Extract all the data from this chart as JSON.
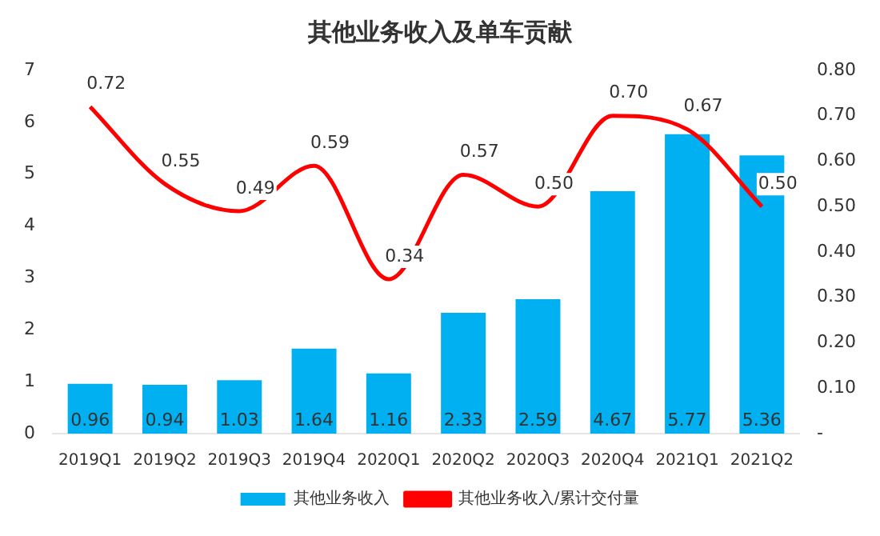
{
  "chart_data": {
    "type": "bar",
    "title": "其他业务收入及单车贡献",
    "categories": [
      "2019Q1",
      "2019Q2",
      "2019Q3",
      "2019Q4",
      "2020Q1",
      "2020Q2",
      "2020Q3",
      "2020Q4",
      "2021Q1",
      "2021Q2"
    ],
    "series": [
      {
        "name": "其他业务收入",
        "color": "#00b0f0",
        "values": [
          0.96,
          0.94,
          1.03,
          1.64,
          1.16,
          2.33,
          2.59,
          4.67,
          5.77,
          5.36
        ],
        "value_labels": [
          "0.96",
          "0.94",
          "1.03",
          "1.64",
          "1.16",
          "2.33",
          "2.59",
          "4.67",
          "5.77",
          "5.36"
        ]
      },
      {
        "name": "其他业务收入/累计交付量",
        "type": "line",
        "axis": "y2",
        "color": "#ff0000",
        "values": [
          0.72,
          0.55,
          0.49,
          0.59,
          0.34,
          0.57,
          0.5,
          0.7,
          0.67,
          0.5
        ],
        "value_labels": [
          "0.72",
          "0.55",
          "0.49",
          "0.59",
          "0.34",
          "0.57",
          "0.50",
          "0.70",
          "0.67",
          "0.50"
        ]
      }
    ],
    "ylim": [
      0,
      7
    ],
    "yticks": [
      0,
      1,
      2,
      3,
      4,
      5,
      6,
      7
    ],
    "y2lim": [
      0,
      0.8
    ],
    "y2ticks": [
      {
        "value": 0,
        "label": "-"
      },
      {
        "value": 0.1,
        "label": "0.10"
      },
      {
        "value": 0.2,
        "label": "0.20"
      },
      {
        "value": 0.3,
        "label": "0.30"
      },
      {
        "value": 0.4,
        "label": "0.40"
      },
      {
        "value": 0.5,
        "label": "0.50"
      },
      {
        "value": 0.6,
        "label": "0.60"
      },
      {
        "value": 0.7,
        "label": "0.70"
      },
      {
        "value": 0.8,
        "label": "0.80"
      }
    ],
    "grid": false,
    "legend": "bottom",
    "marker": "none",
    "line_style": "solid"
  }
}
